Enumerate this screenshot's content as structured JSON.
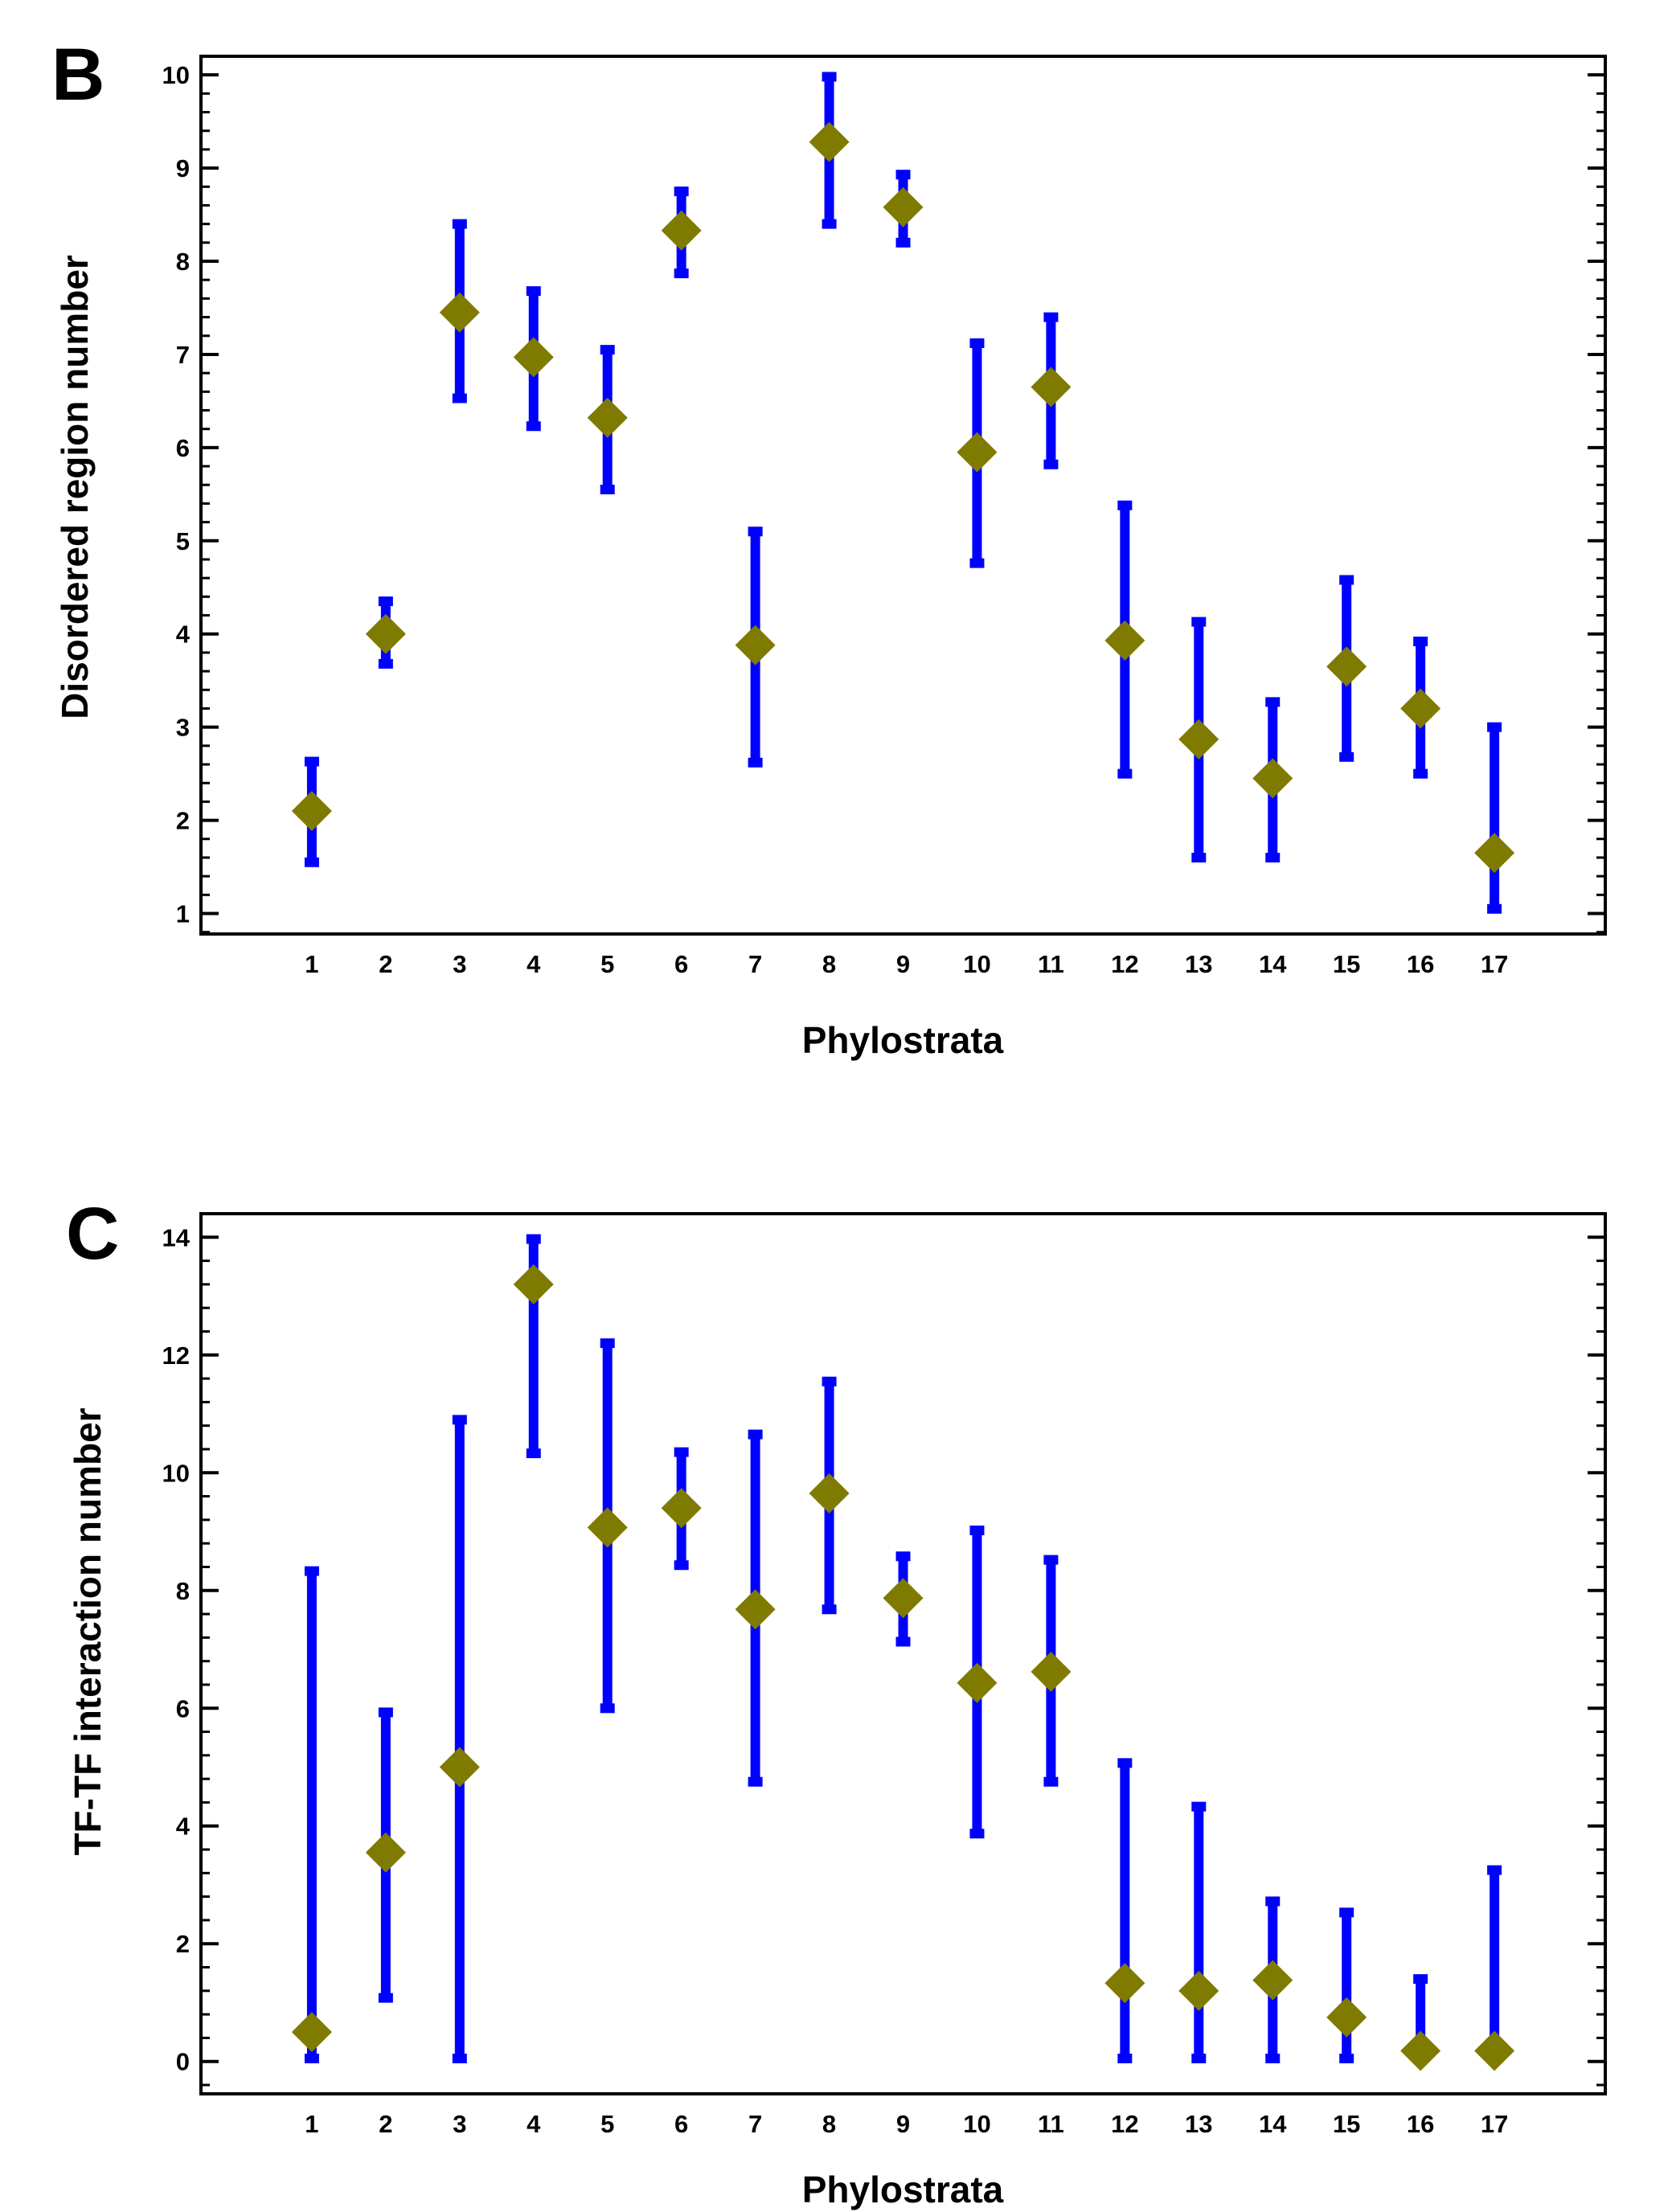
{
  "chart_data": [
    {
      "panel_label": "B",
      "type": "scatter",
      "error_bars": true,
      "title": "",
      "xlabel": "Phylostrata",
      "ylabel": "Disordered region number",
      "x": [
        1,
        2,
        3,
        4,
        5,
        6,
        7,
        8,
        9,
        10,
        11,
        12,
        13,
        14,
        15,
        16,
        17
      ],
      "xticks": [
        "1",
        "2",
        "3",
        "4",
        "5",
        "6",
        "7",
        "8",
        "9",
        "10",
        "11",
        "12",
        "13",
        "14",
        "15",
        "16",
        "17"
      ],
      "yticks": [
        "1",
        "2",
        "3",
        "4",
        "5",
        "6",
        "7",
        "8",
        "9",
        "10"
      ],
      "ylim": [
        0.78,
        10.2
      ],
      "xlim": [
        -0.5,
        18.5
      ],
      "series": [
        {
          "name": "Disordered region number",
          "values": [
            2.1,
            4.0,
            7.45,
            6.97,
            6.32,
            8.33,
            3.88,
            9.28,
            8.58,
            5.95,
            6.65,
            3.93,
            2.87,
            2.45,
            3.65,
            3.2,
            1.65
          ],
          "lower": [
            1.55,
            3.68,
            6.53,
            6.23,
            5.55,
            7.87,
            2.62,
            8.4,
            8.2,
            4.76,
            5.82,
            2.5,
            1.6,
            1.6,
            2.68,
            2.5,
            1.05
          ],
          "upper": [
            2.63,
            4.35,
            8.4,
            7.68,
            7.05,
            8.75,
            5.1,
            9.98,
            8.93,
            7.12,
            7.4,
            5.38,
            4.13,
            3.27,
            4.58,
            3.92,
            3.0
          ]
        }
      ],
      "colors": {
        "marker": "#7f7a00",
        "error_bar": "#0000ff",
        "axis": "#000000"
      }
    },
    {
      "panel_label": "C",
      "type": "scatter",
      "error_bars": true,
      "title": "",
      "xlabel": "Phylostrata",
      "ylabel": "TF-TF interaction number",
      "x": [
        1,
        2,
        3,
        4,
        5,
        6,
        7,
        8,
        9,
        10,
        11,
        12,
        13,
        14,
        15,
        16,
        17
      ],
      "xticks": [
        "1",
        "2",
        "3",
        "4",
        "5",
        "6",
        "7",
        "8",
        "9",
        "10",
        "11",
        "12",
        "13",
        "14",
        "15",
        "16",
        "17"
      ],
      "yticks": [
        "0",
        "2",
        "4",
        "6",
        "8",
        "10",
        "12",
        "14"
      ],
      "ylim": [
        -0.55,
        14.4
      ],
      "xlim": [
        -0.5,
        18.5
      ],
      "series": [
        {
          "name": "TF-TF interaction number",
          "values": [
            0.5,
            3.55,
            5.0,
            13.2,
            9.07,
            9.4,
            7.68,
            9.65,
            7.87,
            6.43,
            6.62,
            1.33,
            1.2,
            1.38,
            0.75,
            0.18,
            0.18
          ],
          "lower": [
            0.05,
            1.08,
            0.05,
            10.33,
            6.0,
            8.43,
            4.75,
            7.68,
            7.13,
            3.87,
            4.75,
            0.05,
            0.05,
            0.05,
            0.05,
            0.05,
            0.05
          ],
          "upper": [
            8.33,
            5.93,
            10.9,
            13.97,
            12.2,
            10.35,
            10.65,
            11.55,
            8.58,
            9.02,
            8.52,
            5.07,
            4.33,
            2.72,
            2.53,
            1.4,
            3.25
          ]
        }
      ],
      "colors": {
        "marker": "#7f7a00",
        "error_bar": "#0000ff",
        "axis": "#000000"
      }
    }
  ]
}
